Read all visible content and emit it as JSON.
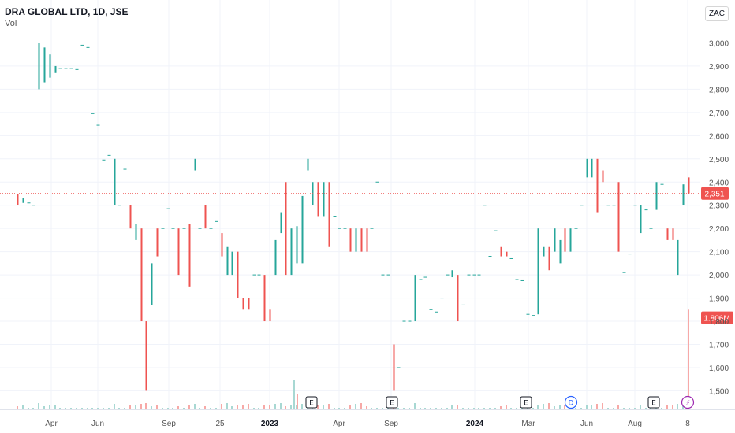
{
  "header": {
    "title": "DRA GLOBAL LTD, 1D, JSE",
    "volume_label": "Vol",
    "currency": "ZAC"
  },
  "colors": {
    "up": "#26a69a",
    "down": "#ef5350",
    "grid": "#f0f3fa",
    "axis_text": "#555555",
    "dividend": "#2962ff",
    "split": "#9c27b0"
  },
  "chart_data": {
    "type": "ohlc",
    "ylim": [
      1420,
      3100
    ],
    "y_ticks": [
      1500,
      1600,
      1700,
      1800,
      1900,
      2000,
      2100,
      2200,
      2300,
      2400,
      2500,
      2600,
      2700,
      2800,
      2900,
      3000
    ],
    "y_tick_labels": [
      "1,500",
      "1,600",
      "1,700",
      "1,800",
      "1,900",
      "2,000",
      "2,100",
      "2,200",
      "2,300",
      "2,400",
      "2,500",
      "2,600",
      "2,700",
      "2,800",
      "2,900",
      "3,000"
    ],
    "x_ticks": [
      {
        "label": "Apr",
        "bold": false
      },
      {
        "label": "Jun",
        "bold": false
      },
      {
        "label": "Sep",
        "bold": false
      },
      {
        "label": "25",
        "bold": false
      },
      {
        "label": "2023",
        "bold": true
      },
      {
        "label": "Apr",
        "bold": false
      },
      {
        "label": "Sep",
        "bold": false
      },
      {
        "label": "2024",
        "bold": true
      },
      {
        "label": "Mar",
        "bold": false
      },
      {
        "label": "Jun",
        "bold": false
      },
      {
        "label": "Aug",
        "bold": false
      },
      {
        "label": "8",
        "bold": false
      }
    ],
    "last_price": {
      "value": 2351,
      "label": "2,351"
    },
    "volume_label": {
      "value": 1806000,
      "label": "1.806M"
    },
    "events": [
      {
        "type": "E",
        "label": "E"
      },
      {
        "type": "E",
        "label": "E"
      },
      {
        "type": "E",
        "label": "E"
      },
      {
        "type": "D",
        "label": "D"
      },
      {
        "type": "E",
        "label": "E"
      },
      {
        "type": "split",
        "label": "⚡"
      }
    ],
    "bars": [
      [
        2350,
        2300,
        2310,
        "d"
      ],
      [
        2330,
        2310,
        2320,
        "u"
      ],
      [
        2320,
        2310,
        2310,
        "f"
      ],
      [
        2310,
        2300,
        2300,
        "f"
      ],
      [
        3000,
        2800,
        2950,
        "u"
      ],
      [
        2980,
        2830,
        2900,
        "u"
      ],
      [
        2950,
        2850,
        2880,
        "u"
      ],
      [
        2900,
        2870,
        2890,
        "u"
      ],
      [
        2895,
        2885,
        2890,
        "f"
      ],
      [
        2895,
        2885,
        2890,
        "f"
      ],
      [
        2895,
        2885,
        2890,
        "f"
      ],
      [
        2890,
        2880,
        2885,
        "f"
      ],
      [
        2995,
        2985,
        2990,
        "f"
      ],
      [
        2985,
        2975,
        2980,
        "f"
      ],
      [
        2700,
        2690,
        2695,
        "f"
      ],
      [
        2650,
        2640,
        2645,
        "f"
      ],
      [
        2500,
        2490,
        2495,
        "f"
      ],
      [
        2520,
        2510,
        2515,
        "f"
      ],
      [
        2500,
        2300,
        2300,
        "u"
      ],
      [
        2305,
        2295,
        2300,
        "f"
      ],
      [
        2460,
        2450,
        2455,
        "f"
      ],
      [
        2300,
        2200,
        2220,
        "d"
      ],
      [
        2220,
        2150,
        2150,
        "u"
      ],
      [
        2200,
        1900,
        1800,
        "d"
      ],
      [
        1800,
        1500,
        1500,
        "d"
      ],
      [
        2050,
        1950,
        1870,
        "u"
      ],
      [
        2200,
        2080,
        2090,
        "d"
      ],
      [
        2210,
        2190,
        2200,
        "f"
      ],
      [
        2290,
        2280,
        2285,
        "f"
      ],
      [
        2210,
        2190,
        2200,
        "f"
      ],
      [
        2200,
        2000,
        2000,
        "d"
      ],
      [
        2220,
        2190,
        2200,
        "f"
      ],
      [
        2220,
        2180,
        1950,
        "d"
      ],
      [
        2500,
        2450,
        2450,
        "u"
      ],
      [
        2220,
        2180,
        2200,
        "f"
      ],
      [
        2300,
        2200,
        2200,
        "d"
      ],
      [
        2220,
        2180,
        2200,
        "f"
      ],
      [
        2250,
        2210,
        2230,
        "f"
      ],
      [
        2180,
        2120,
        2080,
        "d"
      ],
      [
        2120,
        2000,
        2000,
        "u"
      ],
      [
        2100,
        2000,
        2000,
        "u"
      ],
      [
        2100,
        1900,
        1900,
        "d"
      ],
      [
        1900,
        1850,
        1850,
        "d"
      ],
      [
        1900,
        1850,
        1850,
        "d"
      ],
      [
        2000,
        1990,
        2000,
        "f"
      ],
      [
        2010,
        1990,
        2000,
        "f"
      ],
      [
        2000,
        1800,
        1800,
        "d"
      ],
      [
        1850,
        1830,
        1800,
        "d"
      ],
      [
        2150,
        2050,
        2000,
        "u"
      ],
      [
        2270,
        2180,
        2200,
        "u"
      ],
      [
        2400,
        2100,
        2000,
        "d"
      ],
      [
        2200,
        2120,
        2000,
        "u"
      ],
      [
        2210,
        2190,
        2050,
        "u"
      ],
      [
        2340,
        2250,
        2050,
        "u"
      ],
      [
        2500,
        2450,
        2500,
        "u"
      ],
      [
        2400,
        2300,
        2400,
        "u"
      ],
      [
        2400,
        2250,
        2250,
        "d"
      ],
      [
        2400,
        2250,
        2250,
        "u"
      ],
      [
        2400,
        2200,
        2120,
        "d"
      ],
      [
        2290,
        2260,
        2250,
        "f"
      ],
      [
        2220,
        2180,
        2200,
        "f"
      ],
      [
        2220,
        2180,
        2200,
        "f"
      ],
      [
        2200,
        2100,
        2100,
        "d"
      ],
      [
        2200,
        2100,
        2100,
        "u"
      ],
      [
        2200,
        2100,
        2200,
        "d"
      ],
      [
        2200,
        2100,
        2100,
        "d"
      ],
      [
        2210,
        2190,
        2200,
        "f"
      ],
      [
        2400,
        2390,
        2400,
        "f"
      ],
      [
        2000,
        1990,
        2000,
        "f"
      ],
      [
        2010,
        1990,
        2000,
        "f"
      ],
      [
        1700,
        1500,
        1500,
        "d"
      ],
      [
        1610,
        1590,
        1600,
        "f"
      ],
      [
        1800,
        1790,
        1800,
        "f"
      ],
      [
        1810,
        1790,
        1800,
        "f"
      ],
      [
        2000,
        1800,
        1800,
        "u"
      ],
      [
        1990,
        1970,
        1980,
        "f"
      ],
      [
        1990,
        1980,
        1990,
        "f"
      ],
      [
        1850,
        1840,
        1850,
        "f"
      ],
      [
        1850,
        1830,
        1840,
        "f"
      ],
      [
        1910,
        1890,
        1900,
        "f"
      ],
      [
        2000,
        1990,
        2000,
        "f"
      ],
      [
        2020,
        1990,
        2000,
        "u"
      ],
      [
        2000,
        1800,
        1800,
        "d"
      ],
      [
        1870,
        1860,
        1870,
        "f"
      ],
      [
        2000,
        1990,
        2000,
        "f"
      ],
      [
        2010,
        1990,
        2000,
        "f"
      ],
      [
        2010,
        1990,
        2000,
        "f"
      ],
      [
        2300,
        2290,
        2300,
        "f"
      ],
      [
        2110,
        2070,
        2080,
        "f"
      ],
      [
        2200,
        2180,
        2190,
        "f"
      ],
      [
        2120,
        2080,
        2100,
        "d"
      ],
      [
        2100,
        2080,
        2080,
        "d"
      ],
      [
        2080,
        2060,
        2070,
        "f"
      ],
      [
        1990,
        1970,
        1980,
        "f"
      ],
      [
        1980,
        1970,
        1975,
        "f"
      ],
      [
        1830,
        1820,
        1830,
        "f"
      ],
      [
        1830,
        1820,
        1825,
        "f"
      ],
      [
        2200,
        2000,
        1830,
        "u"
      ],
      [
        2120,
        2080,
        2100,
        "u"
      ],
      [
        2120,
        2080,
        2020,
        "d"
      ],
      [
        2200,
        2100,
        2100,
        "u"
      ],
      [
        2150,
        2100,
        2050,
        "u"
      ],
      [
        2200,
        2100,
        2100,
        "d"
      ],
      [
        2200,
        2150,
        2100,
        "u"
      ],
      [
        2200,
        2180,
        2200,
        "f"
      ],
      [
        2310,
        2290,
        2300,
        "f"
      ],
      [
        2500,
        2420,
        2420,
        "u"
      ],
      [
        2500,
        2420,
        2420,
        "u"
      ],
      [
        2500,
        2300,
        2270,
        "d"
      ],
      [
        2450,
        2400,
        2400,
        "d"
      ],
      [
        2310,
        2290,
        2300,
        "f"
      ],
      [
        2300,
        2290,
        2300,
        "f"
      ],
      [
        2400,
        2100,
        2100,
        "d"
      ],
      [
        2010,
        2000,
        2010,
        "f"
      ],
      [
        2100,
        2080,
        2090,
        "f"
      ],
      [
        2310,
        2290,
        2300,
        "f"
      ],
      [
        2300,
        2200,
        2180,
        "u"
      ],
      [
        2290,
        2270,
        2280,
        "f"
      ],
      [
        2210,
        2190,
        2200,
        "f"
      ],
      [
        2400,
        2280,
        2280,
        "u"
      ],
      [
        2400,
        2380,
        2390,
        "f"
      ],
      [
        2200,
        2150,
        2150,
        "d"
      ],
      [
        2200,
        2150,
        2150,
        "d"
      ],
      [
        2150,
        2150,
        2000,
        "u"
      ],
      [
        2390,
        2300,
        2300,
        "u"
      ],
      [
        2420,
        2380,
        2351,
        "d"
      ]
    ]
  }
}
